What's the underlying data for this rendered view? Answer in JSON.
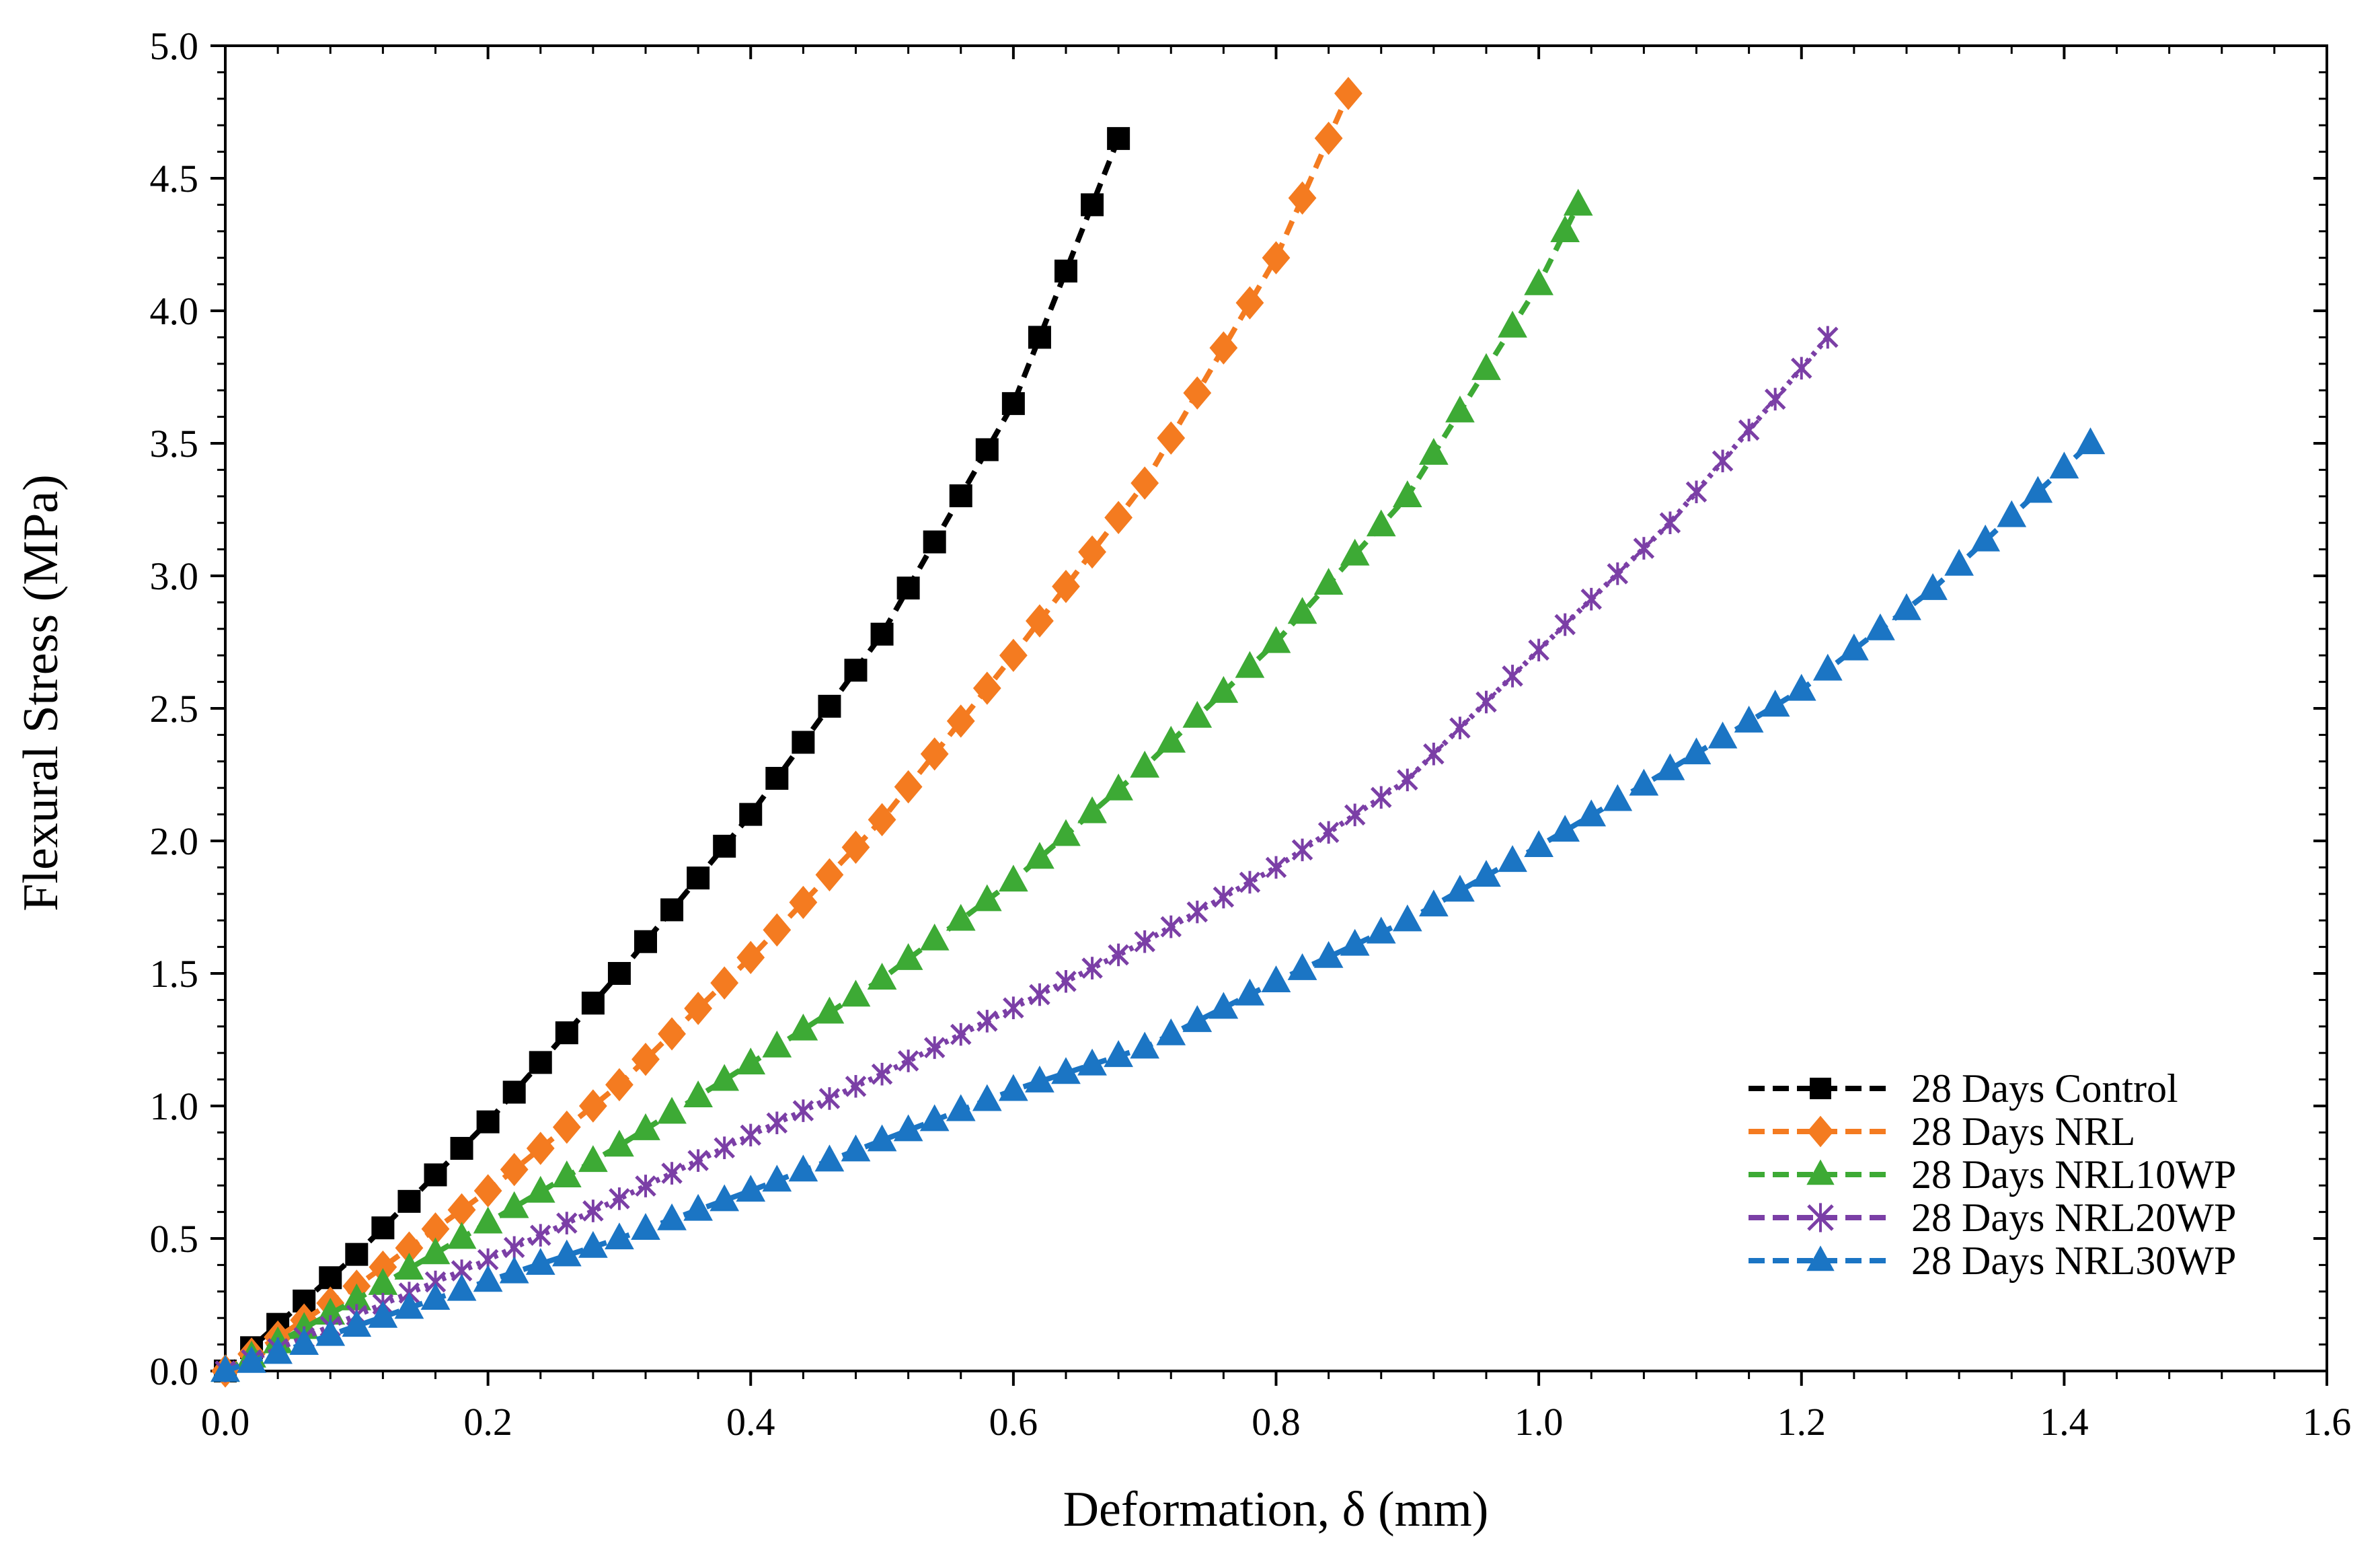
{
  "chart_data": {
    "type": "scatter",
    "title": "",
    "xlabel": "Deformation, δ (mm)",
    "ylabel": "Flexural Stress (MPa)",
    "xlim": [
      0.0,
      1.6
    ],
    "ylim": [
      0.0,
      5.0
    ],
    "x_ticks": [
      "0.0",
      "0.2",
      "0.4",
      "0.6",
      "0.8",
      "1.0",
      "1.2",
      "1.4",
      "1.6"
    ],
    "y_ticks": [
      "0.0",
      "0.5",
      "1.0",
      "1.5",
      "2.0",
      "2.5",
      "3.0",
      "3.5",
      "4.0",
      "4.5",
      "5.0"
    ],
    "grid": false,
    "legend_position": "bottom-right",
    "series": [
      {
        "name": "28 Days Control",
        "color": "#000000",
        "marker": "square",
        "x_end": 0.68,
        "y_end": 4.65,
        "points": [
          [
            0.0,
            0.0
          ],
          [
            0.1,
            0.44
          ],
          [
            0.2,
            0.94
          ],
          [
            0.3,
            1.5
          ],
          [
            0.4,
            2.1
          ],
          [
            0.5,
            2.78
          ],
          [
            0.6,
            3.65
          ],
          [
            0.68,
            4.65
          ]
        ]
      },
      {
        "name": "28 Days NRL",
        "color": "#F47B20",
        "marker": "diamond",
        "x_end": 0.855,
        "y_end": 4.82,
        "points": [
          [
            0.0,
            0.0
          ],
          [
            0.1,
            0.32
          ],
          [
            0.2,
            0.68
          ],
          [
            0.3,
            1.08
          ],
          [
            0.4,
            1.56
          ],
          [
            0.5,
            2.08
          ],
          [
            0.6,
            2.7
          ],
          [
            0.7,
            3.35
          ],
          [
            0.8,
            4.2
          ],
          [
            0.855,
            4.82
          ]
        ]
      },
      {
        "name": "28 Days NRL10WP",
        "color": "#3DAA35",
        "marker": "triangle",
        "x_end": 1.03,
        "y_end": 4.4,
        "points": [
          [
            0.0,
            0.0
          ],
          [
            0.1,
            0.27
          ],
          [
            0.2,
            0.56
          ],
          [
            0.3,
            0.85
          ],
          [
            0.4,
            1.16
          ],
          [
            0.5,
            1.48
          ],
          [
            0.6,
            1.85
          ],
          [
            0.7,
            2.28
          ],
          [
            0.8,
            2.75
          ],
          [
            0.9,
            3.3
          ],
          [
            1.0,
            4.1
          ],
          [
            1.03,
            4.4
          ]
        ]
      },
      {
        "name": "28 Days NRL20WP",
        "color": "#7B3FA6",
        "marker": "star",
        "x_end": 1.22,
        "y_end": 3.9,
        "points": [
          [
            0.0,
            0.0
          ],
          [
            0.1,
            0.21
          ],
          [
            0.2,
            0.42
          ],
          [
            0.3,
            0.65
          ],
          [
            0.4,
            0.89
          ],
          [
            0.5,
            1.12
          ],
          [
            0.6,
            1.37
          ],
          [
            0.7,
            1.62
          ],
          [
            0.8,
            1.9
          ],
          [
            0.9,
            2.23
          ],
          [
            1.0,
            2.72
          ],
          [
            1.1,
            3.2
          ],
          [
            1.22,
            3.9
          ]
        ]
      },
      {
        "name": "28 Days NRL30WP",
        "color": "#1B75C4",
        "marker": "triangle",
        "x_end": 1.42,
        "y_end": 3.5,
        "points": [
          [
            0.0,
            0.0
          ],
          [
            0.1,
            0.17
          ],
          [
            0.2,
            0.34
          ],
          [
            0.3,
            0.5
          ],
          [
            0.4,
            0.68
          ],
          [
            0.5,
            0.87
          ],
          [
            0.6,
            1.06
          ],
          [
            0.7,
            1.22
          ],
          [
            0.8,
            1.47
          ],
          [
            0.9,
            1.7
          ],
          [
            1.0,
            1.98
          ],
          [
            1.1,
            2.27
          ],
          [
            1.2,
            2.57
          ],
          [
            1.3,
            2.95
          ],
          [
            1.42,
            3.5
          ]
        ]
      }
    ]
  }
}
